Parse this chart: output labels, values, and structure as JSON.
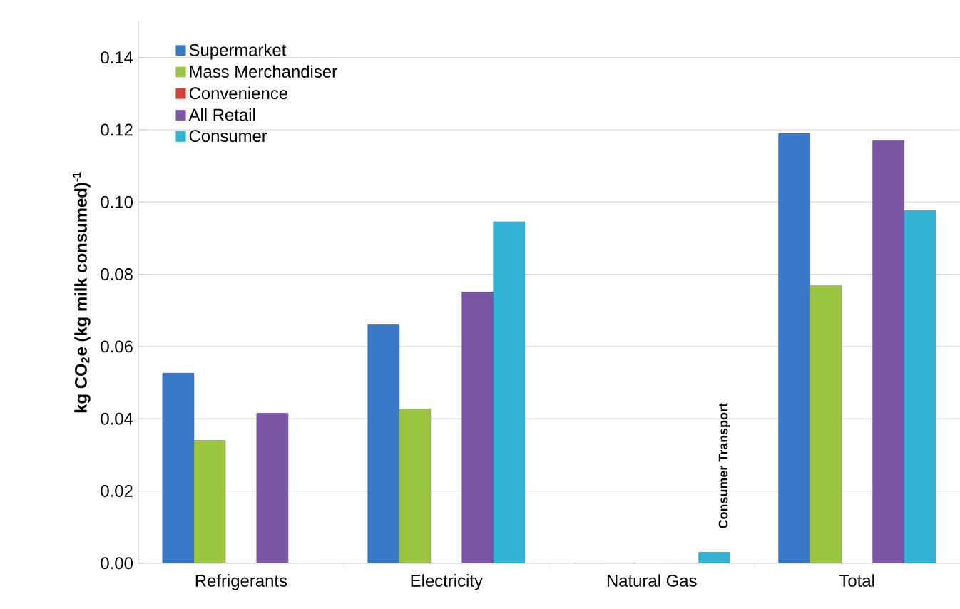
{
  "chart_data": {
    "type": "bar",
    "ylabel": "kg CO$_{2}$e (kg  milk consumed)$^{-1}$",
    "categories": [
      "Refrigerants",
      "Electricity",
      "Natural Gas",
      "Total"
    ],
    "series": [
      {
        "name": "Supermarket",
        "color": "#3a78c8",
        "values": [
          0.0526,
          0.066,
          0,
          0.119
        ]
      },
      {
        "name": "Mass Merchandiser",
        "color": "#9ac540",
        "values": [
          0.034,
          0.0427,
          0,
          0.0768
        ]
      },
      {
        "name": "Convenience",
        "color": "#d2403a",
        "values": [
          0,
          null,
          null,
          null
        ]
      },
      {
        "name": "All Retail",
        "color": "#7b55a6",
        "values": [
          0.0415,
          0.0751,
          0,
          0.117
        ]
      },
      {
        "name": "Consumer",
        "color": "#33b3d4",
        "values": [
          0,
          0.0945,
          0.003,
          0.0976
        ]
      }
    ],
    "ylim": [
      0,
      0.15
    ],
    "yticks": [
      {
        "value": 0,
        "label": "0.00"
      },
      {
        "value": 0.02,
        "label": "0.02"
      },
      {
        "value": 0.04,
        "label": "0.04"
      },
      {
        "value": 0.06,
        "label": "0.06"
      },
      {
        "value": 0.08,
        "label": "0.08"
      },
      {
        "value": 0.1,
        "label": "0.10"
      },
      {
        "value": 0.12,
        "label": "0.12"
      },
      {
        "value": 0.14,
        "label": "0.14"
      }
    ],
    "annotations": [
      "Consumer Transport"
    ],
    "grid": "y",
    "legend": "top left"
  }
}
